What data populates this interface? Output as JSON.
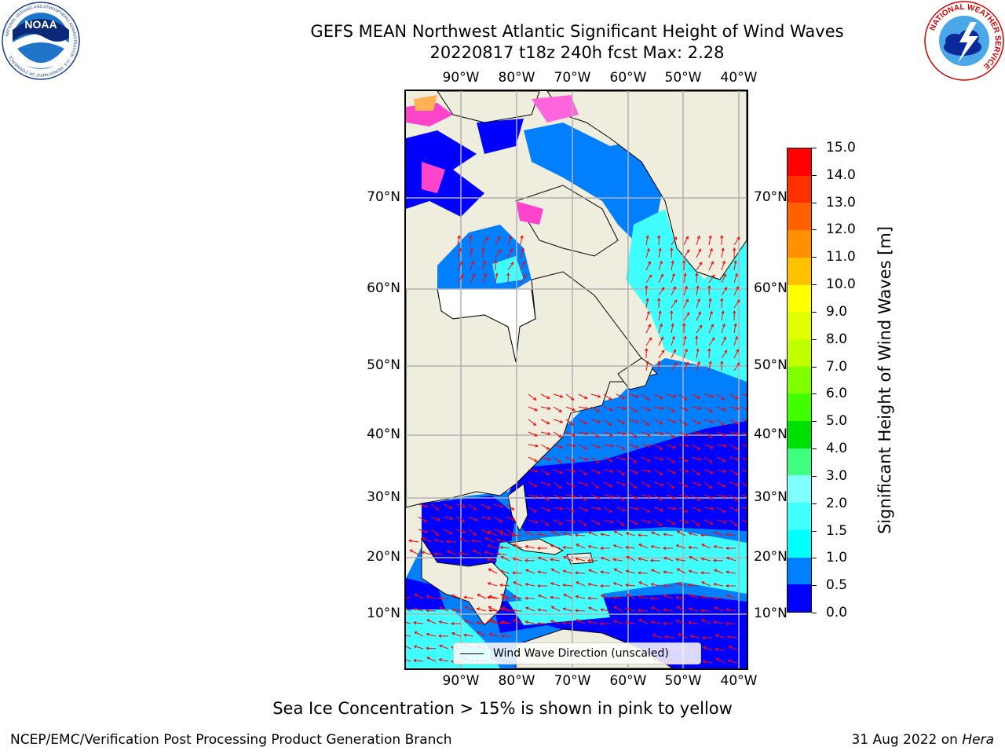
{
  "title": {
    "line1": "GEFS MEAN Northwest Atlantic Significant Height of Wind Waves",
    "line2": "20220817 t18z 240h fcst   Max: 2.28"
  },
  "axes": {
    "lon_labels": [
      "90°W",
      "80°W",
      "70°W",
      "60°W",
      "50°W",
      "40°W"
    ],
    "lat_labels": [
      "70°N",
      "60°N",
      "50°N",
      "40°N",
      "30°N",
      "20°N",
      "10°N"
    ]
  },
  "colorbar": {
    "title": "Significant Height of Wind Waves [m]",
    "ticks": [
      "0.0",
      "0.5",
      "1.0",
      "1.5",
      "2.0",
      "3.0",
      "4.0",
      "5.0",
      "6.0",
      "7.0",
      "8.0",
      "9.0",
      "10.0",
      "11.0",
      "12.0",
      "13.0",
      "14.0",
      "15.0"
    ],
    "colors": [
      "#0000ff",
      "#0080ff",
      "#00ffff",
      "#40ffff",
      "#80ffff",
      "#40ff80",
      "#00e000",
      "#40ff00",
      "#80ff00",
      "#c0ff00",
      "#e0ff00",
      "#ffff00",
      "#ffc000",
      "#ff9000",
      "#ff6000",
      "#ff3000",
      "#ff0000"
    ]
  },
  "legend": {
    "label": "Wind Wave Direction (unscaled)"
  },
  "notes": {
    "sea_ice": "Sea Ice Concentration > 15% is shown in pink to yellow"
  },
  "footer": {
    "left": "NCEP/EMC/Verification Post Processing Product Generation Branch",
    "date": "31 Aug 2022 on",
    "machine": "Hera"
  },
  "logos": {
    "noaa": "NOAA",
    "noaa_ring": "NATIONAL OCEANIC AND ATMOSPHERIC ADMINISTRATION · U.S. DEPARTMENT OF COMMERCE",
    "nws_ring": "NATIONAL WEATHER SERVICE"
  },
  "map_colors": {
    "land": "#efeede",
    "wave_low": "#0000ff",
    "wave_mid": "#0080ff",
    "wave_cyan": "#40ffff",
    "arrows": "#ff0000",
    "ice": "#ff44cc",
    "grid": "#b0b0b0"
  }
}
